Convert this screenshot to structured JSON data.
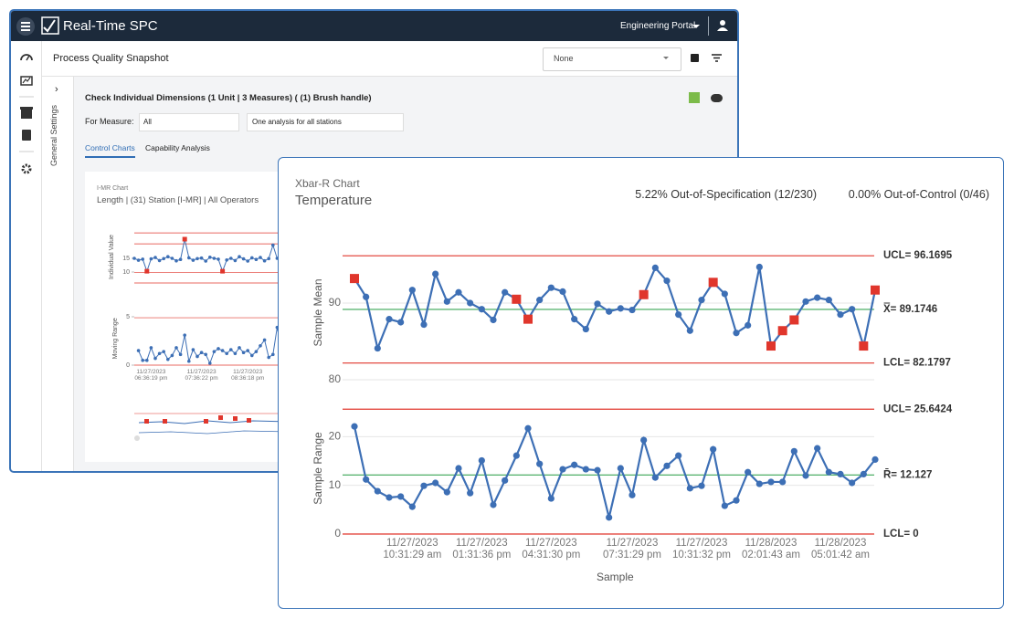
{
  "app": {
    "brand": "Real-Time SPC",
    "portal": "Engineering Portal",
    "page_title": "Process Quality Snapshot",
    "selector": "None",
    "side_panel": "General Settings",
    "analysis_title": "Check Individual Dimensions (1 Unit | 3 Measures) ( (1) Brush handle)",
    "measure_label": "For Measure:",
    "measure_value": "All",
    "station_mode": "One analysis for all stations",
    "tabs": [
      "Control Charts",
      "Capability Analysis"
    ],
    "imr_type": "I-MR Chart",
    "imr_subtitle": "Length | (31) Station [I-MR] | All Operators"
  },
  "card": {
    "chart_type": "Xbar-R Chart",
    "title": "Temperature",
    "out_of_spec": "5.22% Out-of-Specification (12/230)",
    "out_of_control": "0.00% Out-of-Control (0/46)",
    "x_label": "Sample"
  },
  "chart_data": [
    {
      "type": "line",
      "y_label": "Sample Mean",
      "ylim": [
        80,
        97.5
      ],
      "yticks": [
        80,
        90
      ],
      "grid": true,
      "color": "#3d6fb5",
      "values": [
        93.2,
        90.8,
        84.1,
        87.9,
        87.5,
        91.7,
        87.2,
        93.8,
        90.2,
        91.4,
        90.0,
        89.2,
        87.8,
        91.4,
        90.5,
        87.9,
        90.4,
        92.0,
        91.5,
        87.9,
        86.6,
        89.9,
        88.9,
        89.3,
        89.1,
        91.1,
        94.6,
        92.9,
        88.5,
        86.4,
        90.4,
        92.7,
        91.2,
        86.1,
        87.1,
        94.7,
        84.4,
        86.4,
        87.8,
        90.2,
        90.7,
        90.4,
        88.5,
        89.2,
        84.4,
        91.7
      ],
      "point_colors": [
        "#e0362c",
        "#3d6fb5",
        "#3d6fb5",
        "#3d6fb5",
        "#3d6fb5",
        "#3d6fb5",
        "#3d6fb5",
        "#3d6fb5",
        "#3d6fb5",
        "#3d6fb5",
        "#3d6fb5",
        "#3d6fb5",
        "#3d6fb5",
        "#3d6fb5",
        "#e0362c",
        "#e0362c",
        "#3d6fb5",
        "#3d6fb5",
        "#3d6fb5",
        "#3d6fb5",
        "#3d6fb5",
        "#3d6fb5",
        "#3d6fb5",
        "#3d6fb5",
        "#3d6fb5",
        "#e0362c",
        "#3d6fb5",
        "#3d6fb5",
        "#3d6fb5",
        "#3d6fb5",
        "#3d6fb5",
        "#e0362c",
        "#3d6fb5",
        "#3d6fb5",
        "#3d6fb5",
        "#3d6fb5",
        "#e0362c",
        "#e0362c",
        "#e0362c",
        "#3d6fb5",
        "#3d6fb5",
        "#3d6fb5",
        "#3d6fb5",
        "#3d6fb5",
        "#e0362c",
        "#e0362c"
      ],
      "control_lines": [
        {
          "value": 96.1695,
          "label": "UCL= 96.1695",
          "color": "#e0362c"
        },
        {
          "value": 89.1746,
          "label": "X̿= 89.1746",
          "color": "#3aa655"
        },
        {
          "value": 82.1797,
          "label": "LCL= 82.1797",
          "color": "#e0362c"
        }
      ]
    },
    {
      "type": "line",
      "y_label": "Sample Range",
      "ylim": [
        0,
        27
      ],
      "yticks": [
        0,
        10,
        20
      ],
      "grid": true,
      "color": "#3d6fb5",
      "categories": [
        null,
        null,
        null,
        null,
        null,
        "11/27/2023\n10:31:29 am",
        null,
        null,
        null,
        null,
        null,
        "11/27/2023\n01:31:36 pm",
        null,
        null,
        null,
        null,
        null,
        "11/27/2023\n04:31:30 pm",
        null,
        null,
        null,
        null,
        null,
        null,
        "11/27/2023\n07:31:29 pm",
        null,
        null,
        null,
        null,
        null,
        "11/27/2023\n10:31:32 pm",
        null,
        null,
        null,
        null,
        null,
        "11/28/2023\n02:01:43 am",
        null,
        null,
        null,
        null,
        null,
        "11/28/2023\n05:01:42 am",
        null,
        null,
        null
      ],
      "values": [
        22.1,
        11.2,
        8.8,
        7.5,
        7.7,
        5.6,
        9.9,
        10.5,
        8.6,
        13.5,
        8.4,
        15.1,
        6.0,
        11.0,
        16.1,
        21.7,
        14.4,
        7.3,
        13.3,
        14.2,
        13.3,
        13.1,
        3.4,
        13.5,
        8.0,
        19.3,
        11.6,
        14.0,
        16.1,
        9.4,
        9.9,
        17.4,
        5.8,
        6.9,
        12.7,
        10.3,
        10.7,
        10.7,
        17.0,
        12.0,
        17.6,
        12.7,
        12.3,
        10.5,
        12.3,
        15.3
      ],
      "control_lines": [
        {
          "value": 25.6424,
          "label": "UCL= 25.6424",
          "color": "#e0362c"
        },
        {
          "value": 12.127,
          "label": "R̄= 12.127",
          "color": "#3aa655"
        },
        {
          "value": 0,
          "label": "LCL= 0",
          "color": "#e0362c"
        }
      ]
    },
    {
      "type": "line",
      "y_label": "Individual Value",
      "ylim": [
        4,
        27
      ],
      "yticks": [
        10,
        15
      ],
      "grid": false,
      "color": "#3d6fb5",
      "values": [
        15.0,
        14.3,
        14.7,
        10.3,
        14.8,
        15.3,
        14.2,
        14.9,
        15.6,
        15.0,
        14.1,
        14.6,
        22.0,
        15.2,
        14.3,
        14.9,
        15.1,
        14.0,
        15.4,
        15.0,
        14.7,
        10.3,
        14.4,
        15.0,
        14.2,
        15.6,
        14.8,
        14.0,
        15.2,
        14.6,
        15.3,
        14.1,
        14.9,
        19.8,
        15.0,
        14.5
      ],
      "point_colors": [
        "#3d6fb5",
        "#3d6fb5",
        "#3d6fb5",
        "#e0362c",
        "#3d6fb5",
        "#3d6fb5",
        "#3d6fb5",
        "#3d6fb5",
        "#3d6fb5",
        "#3d6fb5",
        "#3d6fb5",
        "#3d6fb5",
        "#e0362c",
        "#3d6fb5",
        "#3d6fb5",
        "#3d6fb5",
        "#3d6fb5",
        "#3d6fb5",
        "#3d6fb5",
        "#3d6fb5",
        "#3d6fb5",
        "#e0362c",
        "#3d6fb5",
        "#3d6fb5",
        "#3d6fb5",
        "#3d6fb5",
        "#3d6fb5",
        "#3d6fb5",
        "#3d6fb5",
        "#3d6fb5",
        "#3d6fb5",
        "#3d6fb5",
        "#3d6fb5",
        "#3d6fb5",
        "#3d6fb5",
        "#3d6fb5"
      ],
      "control_lines": [
        {
          "value": 24.3,
          "color": "#e0362c"
        },
        {
          "value": 20.3,
          "color": "#e0362c"
        },
        {
          "value": 9.9,
          "color": "#e0362c"
        },
        {
          "value": 6.0,
          "color": "#e0362c"
        }
      ]
    },
    {
      "type": "line",
      "y_label": "Moving Range",
      "ylim": [
        0,
        5.5
      ],
      "yticks": [
        0,
        5
      ],
      "grid": false,
      "color": "#3d6fb5",
      "categories": [
        null,
        null,
        null,
        "11/27/2023\n06:36:19 pm",
        null,
        null,
        null,
        null,
        null,
        null,
        null,
        null,
        null,
        null,
        null,
        "11/27/2023\n07:36:22 pm",
        null,
        null,
        null,
        null,
        null,
        null,
        null,
        null,
        null,
        null,
        "11/27/2023\n08:36:18 pm",
        null,
        null,
        null,
        null,
        null,
        null,
        null,
        null
      ],
      "values": [
        1.5,
        0.5,
        0.5,
        1.8,
        0.7,
        1.2,
        1.4,
        0.6,
        1.0,
        1.8,
        1.1,
        3.1,
        0.4,
        1.6,
        0.9,
        1.3,
        1.1,
        0.2,
        1.4,
        1.7,
        1.5,
        1.2,
        1.6,
        1.2,
        1.8,
        1.3,
        1.5,
        1.0,
        1.4,
        2.0,
        2.6,
        0.8,
        1.1,
        3.9,
        1.8
      ],
      "control_lines": [
        {
          "value": 4.9,
          "color": "#e0362c"
        },
        {
          "value": 0,
          "color": "#e0362c"
        }
      ]
    }
  ]
}
